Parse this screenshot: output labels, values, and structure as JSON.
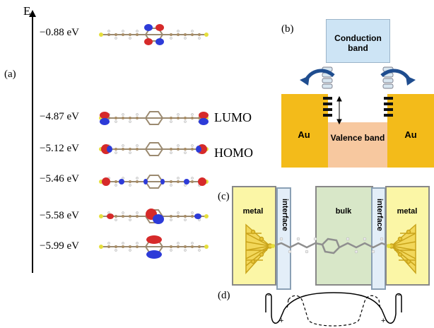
{
  "panel_a": {
    "letter": "(a)",
    "axis_label": "E",
    "levels": [
      {
        "energy": "−0.88 eV"
      },
      {
        "energy": "−4.87 eV",
        "orbital": "LUMO"
      },
      {
        "energy": "−5.12 eV",
        "orbital": "HOMO"
      },
      {
        "energy": "−5.46 eV"
      },
      {
        "energy": "−5.58 eV"
      },
      {
        "energy": "−5.99 eV"
      }
    ]
  },
  "panel_b": {
    "letter": "(b)",
    "conduction_band": "Conduction band",
    "valence_band": "Valence band",
    "left_electrode": "Au",
    "right_electrode": "Au",
    "colors": {
      "gold": "#f3bb1a",
      "conduction": "#cde4f5",
      "valence": "#f7c89f"
    }
  },
  "panel_c": {
    "letter": "(c)",
    "regions": [
      "metal",
      "interface",
      "bulk",
      "interface",
      "metal"
    ],
    "colors": {
      "metal": "#fbf6a6",
      "interface": "#e3eef8",
      "bulk": "#d8e7c8"
    }
  },
  "panel_d": {
    "letter": "(d)",
    "signs": [
      "−",
      "+",
      "+",
      "−"
    ]
  }
}
